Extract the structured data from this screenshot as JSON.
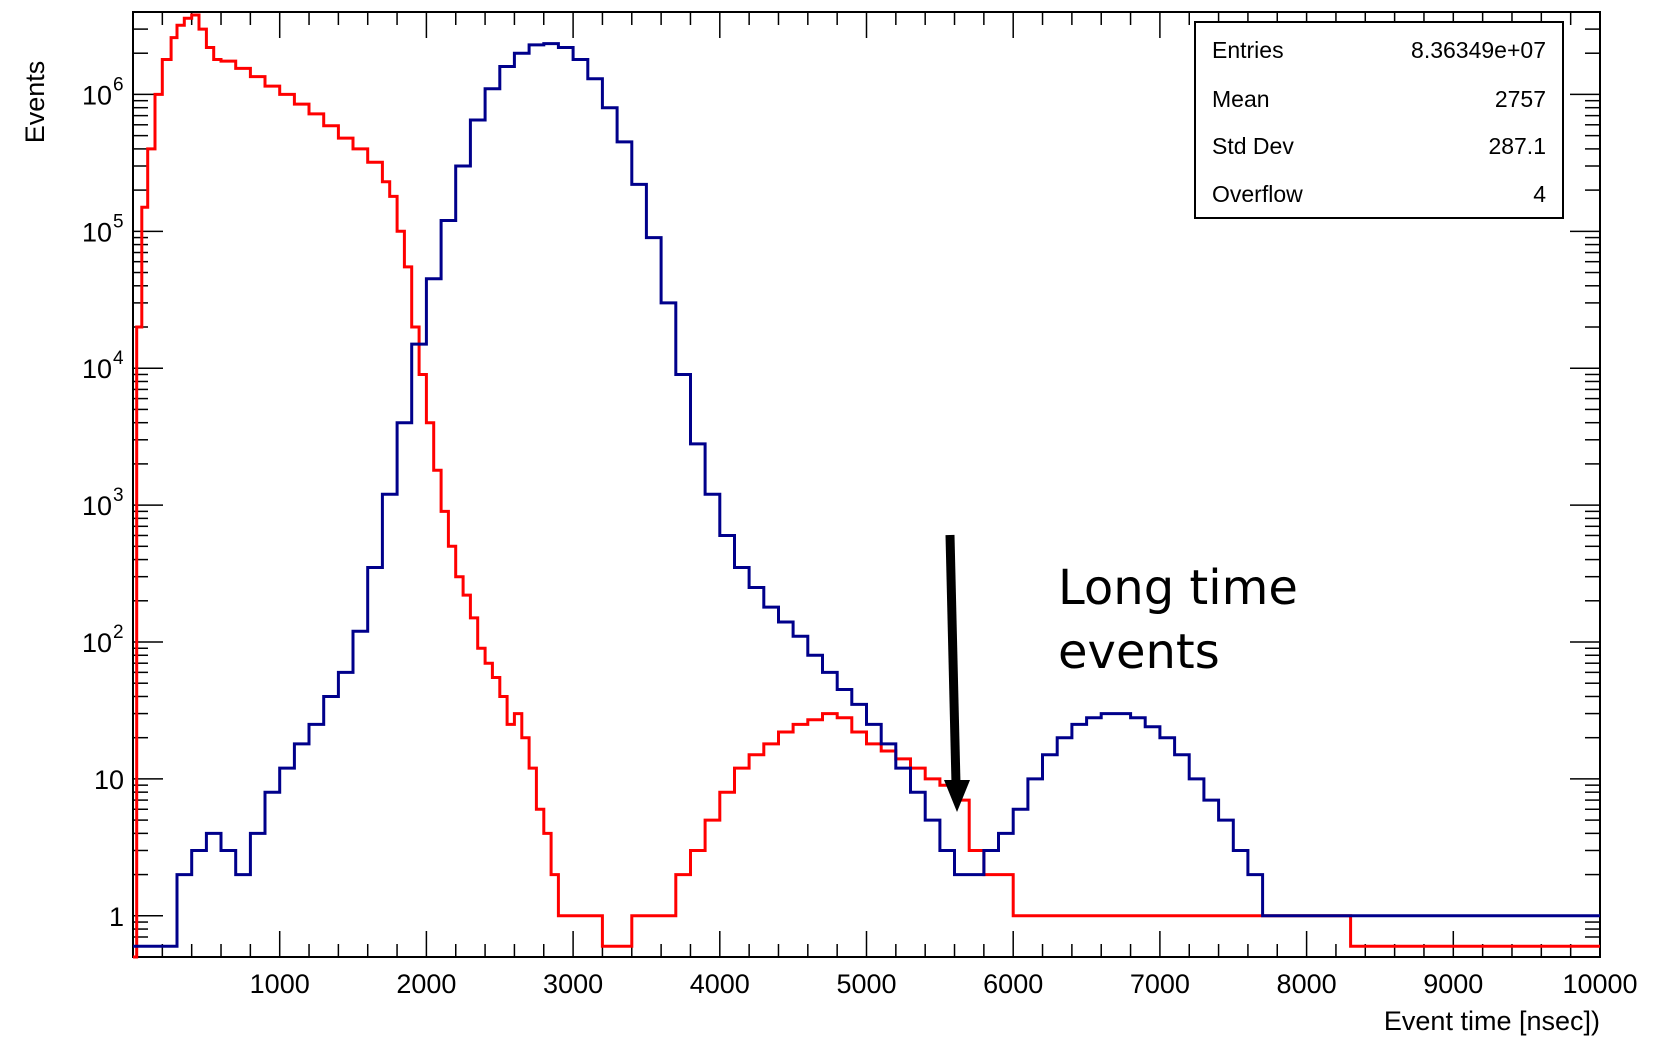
{
  "chart_data": {
    "type": "histogram",
    "xlabel": "Event time [nsec])",
    "ylabel": "Events",
    "xlim": [
      0,
      10000
    ],
    "ylim": [
      0.5,
      4000000
    ],
    "yscale": "log",
    "grid": false,
    "x_ticks": [
      1000,
      2000,
      3000,
      4000,
      5000,
      6000,
      7000,
      8000,
      9000,
      10000
    ],
    "y_ticks": [
      {
        "value": 1,
        "label": "1",
        "sup": ""
      },
      {
        "value": 10,
        "label": "10",
        "sup": ""
      },
      {
        "value": 100,
        "label": "10",
        "sup": "2"
      },
      {
        "value": 1000,
        "label": "10",
        "sup": "3"
      },
      {
        "value": 10000,
        "label": "10",
        "sup": "4"
      },
      {
        "value": 100000,
        "label": "10",
        "sup": "5"
      },
      {
        "value": 1000000,
        "label": "10",
        "sup": "6"
      }
    ],
    "series": [
      {
        "color": "#ff0000",
        "points": [
          [
            0,
            0.5
          ],
          [
            25,
            20000
          ],
          [
            60,
            150000
          ],
          [
            100,
            400000
          ],
          [
            150,
            1000000
          ],
          [
            200,
            1800000
          ],
          [
            260,
            2600000
          ],
          [
            300,
            3200000
          ],
          [
            350,
            3600000
          ],
          [
            400,
            3800000
          ],
          [
            450,
            3000000
          ],
          [
            500,
            2200000
          ],
          [
            550,
            1800000
          ],
          [
            600,
            1750000
          ],
          [
            700,
            1550000
          ],
          [
            800,
            1350000
          ],
          [
            900,
            1150000
          ],
          [
            1000,
            1000000
          ],
          [
            1100,
            850000
          ],
          [
            1200,
            720000
          ],
          [
            1300,
            590000
          ],
          [
            1400,
            480000
          ],
          [
            1500,
            400000
          ],
          [
            1600,
            320000
          ],
          [
            1700,
            230000
          ],
          [
            1750,
            180000
          ],
          [
            1800,
            100000
          ],
          [
            1850,
            55000
          ],
          [
            1900,
            20000
          ],
          [
            1950,
            9000
          ],
          [
            2000,
            4000
          ],
          [
            2050,
            1800
          ],
          [
            2100,
            900
          ],
          [
            2150,
            500
          ],
          [
            2200,
            300
          ],
          [
            2250,
            220
          ],
          [
            2300,
            150
          ],
          [
            2350,
            90
          ],
          [
            2400,
            70
          ],
          [
            2450,
            55
          ],
          [
            2500,
            40
          ],
          [
            2550,
            25
          ],
          [
            2600,
            30
          ],
          [
            2650,
            20
          ],
          [
            2700,
            12
          ],
          [
            2750,
            6
          ],
          [
            2800,
            4
          ],
          [
            2850,
            2
          ],
          [
            2900,
            1
          ],
          [
            3000,
            1
          ],
          [
            3200,
            0.6
          ],
          [
            3400,
            1
          ],
          [
            3600,
            1
          ],
          [
            3700,
            2
          ],
          [
            3800,
            3
          ],
          [
            3900,
            5
          ],
          [
            4000,
            8
          ],
          [
            4100,
            12
          ],
          [
            4200,
            15
          ],
          [
            4300,
            18
          ],
          [
            4400,
            22
          ],
          [
            4500,
            25
          ],
          [
            4600,
            27
          ],
          [
            4700,
            30
          ],
          [
            4800,
            28
          ],
          [
            4900,
            22
          ],
          [
            5000,
            18
          ],
          [
            5100,
            16
          ],
          [
            5200,
            14
          ],
          [
            5300,
            12
          ],
          [
            5400,
            10
          ],
          [
            5500,
            9
          ],
          [
            5600,
            7
          ],
          [
            5700,
            3
          ],
          [
            5800,
            2
          ],
          [
            5900,
            2
          ],
          [
            6000,
            1
          ],
          [
            6200,
            1
          ],
          [
            6500,
            1
          ],
          [
            7000,
            1
          ],
          [
            7500,
            1
          ],
          [
            8000,
            1
          ],
          [
            8300,
            0.6
          ],
          [
            10000,
            0.6
          ]
        ]
      },
      {
        "color": "#00008b",
        "points": [
          [
            0,
            0.6
          ],
          [
            200,
            0.6
          ],
          [
            300,
            2
          ],
          [
            400,
            3
          ],
          [
            500,
            4
          ],
          [
            600,
            3
          ],
          [
            700,
            2
          ],
          [
            800,
            4
          ],
          [
            900,
            8
          ],
          [
            1000,
            12
          ],
          [
            1100,
            18
          ],
          [
            1200,
            25
          ],
          [
            1300,
            40
          ],
          [
            1400,
            60
          ],
          [
            1500,
            120
          ],
          [
            1600,
            350
          ],
          [
            1700,
            1200
          ],
          [
            1800,
            4000
          ],
          [
            1900,
            15000
          ],
          [
            2000,
            45000
          ],
          [
            2100,
            120000
          ],
          [
            2200,
            300000
          ],
          [
            2300,
            650000
          ],
          [
            2400,
            1100000
          ],
          [
            2500,
            1600000
          ],
          [
            2600,
            2000000
          ],
          [
            2700,
            2300000
          ],
          [
            2800,
            2350000
          ],
          [
            2900,
            2200000
          ],
          [
            3000,
            1800000
          ],
          [
            3100,
            1300000
          ],
          [
            3200,
            800000
          ],
          [
            3300,
            450000
          ],
          [
            3400,
            220000
          ],
          [
            3500,
            90000
          ],
          [
            3600,
            30000
          ],
          [
            3700,
            9000
          ],
          [
            3800,
            2800
          ],
          [
            3900,
            1200
          ],
          [
            4000,
            600
          ],
          [
            4100,
            350
          ],
          [
            4200,
            250
          ],
          [
            4300,
            180
          ],
          [
            4400,
            140
          ],
          [
            4500,
            110
          ],
          [
            4600,
            80
          ],
          [
            4700,
            60
          ],
          [
            4800,
            45
          ],
          [
            4900,
            35
          ],
          [
            5000,
            25
          ],
          [
            5100,
            18
          ],
          [
            5200,
            12
          ],
          [
            5300,
            8
          ],
          [
            5400,
            5
          ],
          [
            5500,
            3
          ],
          [
            5600,
            2
          ],
          [
            5700,
            2
          ],
          [
            5800,
            3
          ],
          [
            5900,
            4
          ],
          [
            6000,
            6
          ],
          [
            6100,
            10
          ],
          [
            6200,
            15
          ],
          [
            6300,
            20
          ],
          [
            6400,
            25
          ],
          [
            6500,
            28
          ],
          [
            6600,
            30
          ],
          [
            6700,
            30
          ],
          [
            6800,
            28
          ],
          [
            6900,
            24
          ],
          [
            7000,
            20
          ],
          [
            7100,
            15
          ],
          [
            7200,
            10
          ],
          [
            7300,
            7
          ],
          [
            7400,
            5
          ],
          [
            7500,
            3
          ],
          [
            7600,
            2
          ],
          [
            7700,
            1
          ],
          [
            7800,
            1
          ],
          [
            8000,
            1
          ],
          [
            8500,
            1
          ],
          [
            9000,
            1
          ],
          [
            9500,
            1
          ],
          [
            10000,
            1
          ]
        ]
      }
    ],
    "stats_box": [
      {
        "name": "Entries",
        "value": "8.36349e+07"
      },
      {
        "name": "Mean",
        "value": "2757"
      },
      {
        "name": "Std Dev",
        "value": "287.1"
      },
      {
        "name": "Overflow",
        "value": "4"
      }
    ],
    "annotation": {
      "lines": [
        "Long time",
        "events"
      ],
      "arrow_target": [
        5600,
        6
      ]
    }
  }
}
